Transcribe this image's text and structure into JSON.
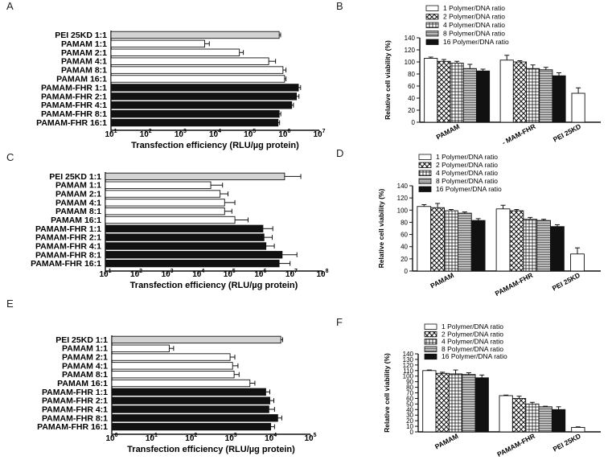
{
  "colors": {
    "pei": "#d3d3d3",
    "pamam": "#ffffff",
    "fhr": "#111111",
    "axis": "#111111"
  },
  "chart_data": [
    {
      "panel": "A",
      "type": "bar",
      "orientation": "horizontal",
      "xscale": "log",
      "xlabel": "Transfection efficiency (RLU/µg protein)",
      "xlim": [
        10,
        10000000
      ],
      "xticks": [
        {
          "v": 10,
          "b": "10",
          "e": "1"
        },
        {
          "v": 100,
          "b": "10",
          "e": "2"
        },
        {
          "v": 1000,
          "b": "10",
          "e": "3"
        },
        {
          "v": 10000,
          "b": "10",
          "e": "4"
        },
        {
          "v": 100000,
          "b": "10",
          "e": "5"
        },
        {
          "v": 1000000,
          "b": "10",
          "e": "6"
        },
        {
          "v": 10000000,
          "b": "10",
          "e": "7"
        }
      ],
      "categories": [
        "PEI 25KD 1:1",
        "PAMAM 1:1",
        "PAMAM  2:1",
        "PAMAM  4:1",
        "PAMAM  8:1",
        "PAMAM 16:1",
        "PAMAM-FHR 1:1",
        "PAMAM-FHR 2:1",
        "PAMAM-FHR 4:1",
        "PAMAM-FHR 8:1",
        "PAMAM-FHR 16:1"
      ],
      "groups": [
        "pei",
        "pamam",
        "pamam",
        "pamam",
        "pamam",
        "pamam",
        "fhr",
        "fhr",
        "fhr",
        "fhr",
        "fhr"
      ],
      "values": [
        700000,
        5000,
        50000,
        350000,
        900000,
        1000000,
        2500000,
        2200000,
        1600000,
        700000,
        650000
      ],
      "errors": [
        770000,
        6800,
        65000,
        550000,
        1100000,
        1100000,
        2900000,
        2600000,
        1800000,
        780000,
        720000
      ]
    },
    {
      "panel": "B",
      "type": "bar",
      "orientation": "vertical",
      "ylabel": "Relative cell viability (%)",
      "ylim": [
        0,
        140
      ],
      "yticks": [
        0,
        20,
        40,
        60,
        80,
        100,
        120,
        140
      ],
      "groups": [
        "PAMAM",
        "- MAM-FHR",
        "PEI 25KD"
      ],
      "legend": [
        "1 Polymer/DNA ratio",
        "2 Polymer/DNA ratio",
        "4 Polymer/DNA ratio",
        "8 Polymer/DNA ratio",
        "16 Polymer/DNA ratio"
      ],
      "series": [
        {
          "name": "1 Polymer/DNA ratio",
          "values": [
            106,
            103
          ]
        },
        {
          "name": "2 Polymer/DNA ratio",
          "values": [
            101,
            100
          ]
        },
        {
          "name": "4 Polymer/DNA ratio",
          "values": [
            98,
            89
          ]
        },
        {
          "name": "8 Polymer/DNA ratio",
          "values": [
            89,
            87
          ]
        },
        {
          "name": "16 Polymer/DNA ratio",
          "values": [
            85,
            77
          ]
        }
      ],
      "series_errors": [
        [
          108,
          111
        ],
        [
          104,
          102
        ],
        [
          101,
          95
        ],
        [
          96,
          91
        ],
        [
          88,
          82
        ]
      ],
      "pei": {
        "value": 48,
        "error": 57
      }
    },
    {
      "panel": "C",
      "type": "bar",
      "orientation": "horizontal",
      "xscale": "log",
      "xlabel": "Transfection efficiency (RLU/µg protein)",
      "xlim": [
        10,
        100000000
      ],
      "xticks": [
        {
          "v": 10,
          "b": "10",
          "e": "1"
        },
        {
          "v": 100,
          "b": "10",
          "e": "2"
        },
        {
          "v": 1000,
          "b": "10",
          "e": "3"
        },
        {
          "v": 10000,
          "b": "10",
          "e": "4"
        },
        {
          "v": 100000,
          "b": "10",
          "e": "5"
        },
        {
          "v": 1000000,
          "b": "10",
          "e": "6"
        },
        {
          "v": 10000000,
          "b": "10",
          "e": "7"
        },
        {
          "v": 100000000,
          "b": "10",
          "e": "8"
        }
      ],
      "categories": [
        "PEI 25KD 1:1",
        "PAMAM 1:1",
        "PAMAM  2:1",
        "PAMAM  4:1",
        "PAMAM  8:1",
        "PAMAM 16:1",
        "PAMAM-FHR 1:1",
        "PAMAM-FHR 2:1",
        "PAMAM-FHR 4:1",
        "PAMAM-FHR 8:1",
        "PAMAM-FHR 16:1"
      ],
      "groups": [
        "pei",
        "pamam",
        "pamam",
        "pamam",
        "pamam",
        "pamam",
        "fhr",
        "fhr",
        "fhr",
        "fhr",
        "fhr"
      ],
      "values": [
        6000000,
        25000,
        50000,
        70000,
        70000,
        150000,
        1200000,
        1300000,
        1500000,
        5000000,
        4000000
      ],
      "errors": [
        20000000,
        60000,
        90000,
        150000,
        120000,
        400000,
        2500000,
        2400000,
        2800000,
        15000000,
        9000000
      ]
    },
    {
      "panel": "D",
      "type": "bar",
      "orientation": "vertical",
      "ylabel": "Relative cell viability (%)",
      "ylim": [
        0,
        140
      ],
      "yticks": [
        0,
        20,
        40,
        60,
        80,
        100,
        120,
        140
      ],
      "groups": [
        "PAMAM",
        "PAMAM-FHR",
        "PEI 25KD"
      ],
      "legend": [
        "1 Polymer/DNA ratio",
        "2 Polymer/DNA ratio",
        "4 Polymer/DNA ratio",
        "8 Polymer/DNA ratio",
        "16 Polymer/DNA ratio"
      ],
      "series": [
        {
          "name": "1 Polymer/DNA ratio",
          "values": [
            106,
            102
          ]
        },
        {
          "name": "2 Polymer/DNA ratio",
          "values": [
            104,
            99
          ]
        },
        {
          "name": "4 Polymer/DNA ratio",
          "values": [
            99,
            85
          ]
        },
        {
          "name": "8 Polymer/DNA ratio",
          "values": [
            95,
            83
          ]
        },
        {
          "name": "16 Polymer/DNA ratio",
          "values": [
            83,
            73
          ]
        }
      ],
      "series_errors": [
        [
          109,
          108
        ],
        [
          111,
          101
        ],
        [
          101,
          88
        ],
        [
          97,
          85
        ],
        [
          86,
          76
        ]
      ],
      "pei": {
        "value": 28,
        "error": 38
      }
    },
    {
      "panel": "E",
      "type": "bar",
      "orientation": "horizontal",
      "xscale": "log",
      "xlabel": "Transfection efficiency (RLU/µg protein)",
      "xlim": [
        1,
        100000
      ],
      "xticks": [
        {
          "v": 1,
          "b": "10",
          "e": "0"
        },
        {
          "v": 10,
          "b": "10",
          "e": "1"
        },
        {
          "v": 100,
          "b": "10",
          "e": "2"
        },
        {
          "v": 1000,
          "b": "10",
          "e": "3"
        },
        {
          "v": 10000,
          "b": "10",
          "e": "4"
        },
        {
          "v": 100000,
          "b": "10",
          "e": "5"
        }
      ],
      "categories": [
        "PEI 25KD 1:1",
        "PAMAM 1:1",
        "PAMAM  2:1",
        "PAMAM  4:1",
        "PAMAM  8:1",
        "PAMAM 16:1",
        "PAMAM-FHR 1:1",
        "PAMAM-FHR 2:1",
        "PAMAM-FHR 4:1",
        "PAMAM-FHR 8:1",
        "PAMAM-FHR 16:1"
      ],
      "groups": [
        "pei",
        "pamam",
        "pamam",
        "pamam",
        "pamam",
        "pamam",
        "fhr",
        "fhr",
        "fhr",
        "fhr",
        "fhr"
      ],
      "values": [
        18000,
        28,
        950,
        1100,
        1200,
        3000,
        7500,
        9500,
        9000,
        15000,
        10000
      ],
      "errors": [
        20000,
        36,
        1250,
        1500,
        1600,
        4000,
        9500,
        12000,
        12500,
        19000,
        12500
      ]
    },
    {
      "panel": "F",
      "type": "bar",
      "orientation": "vertical",
      "ylabel": "Relative cell viability (%)",
      "ylim": [
        0,
        140
      ],
      "yticks": [
        0,
        10,
        20,
        30,
        40,
        50,
        60,
        70,
        80,
        90,
        100,
        110,
        120,
        130,
        140
      ],
      "groups": [
        "PAMAM",
        "PAMAM-FHR",
        "PEI 25KD"
      ],
      "legend": [
        "1 Polymer/DNA ratio",
        "2 Polymer/DNA ratio",
        "4 Polymer/DNA ratio",
        "8 Polymer/DNA ratio",
        "16 Polymer/DNA ratio"
      ],
      "series": [
        {
          "name": "1 Polymer/DNA ratio",
          "values": [
            110,
            65
          ]
        },
        {
          "name": "2 Polymer/DNA ratio",
          "values": [
            105,
            60
          ]
        },
        {
          "name": "4 Polymer/DNA ratio",
          "values": [
            104,
            50
          ]
        },
        {
          "name": "8 Polymer/DNA ratio",
          "values": [
            103,
            45
          ]
        },
        {
          "name": "16 Polymer/DNA ratio",
          "values": [
            97,
            40
          ]
        }
      ],
      "series_errors": [
        [
          111,
          66
        ],
        [
          107,
          64
        ],
        [
          111,
          53
        ],
        [
          106,
          46
        ],
        [
          102,
          45
        ]
      ],
      "pei": {
        "value": 8,
        "error": 9
      }
    }
  ]
}
